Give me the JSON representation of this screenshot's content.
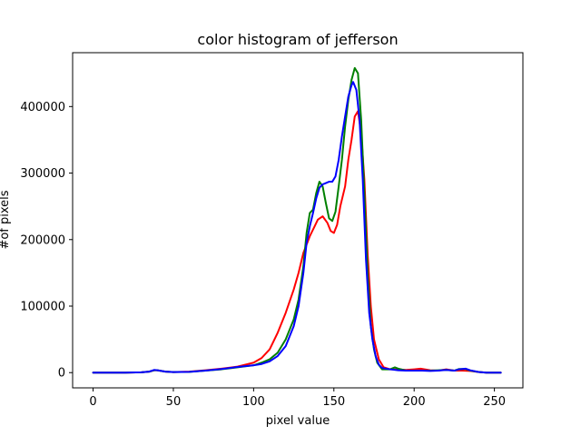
{
  "chart_data": {
    "type": "line",
    "title": "color histogram of jefferson",
    "xlabel": "pixel value",
    "ylabel": "#of pixels",
    "xlim": [
      -12.75,
      267.75
    ],
    "ylim": [
      -22900,
      481000
    ],
    "grid": false,
    "legend": "none",
    "xticks": [
      0,
      50,
      100,
      150,
      200,
      250
    ],
    "xtick_labels": [
      "0",
      "50",
      "100",
      "150",
      "200",
      "250"
    ],
    "yticks": [
      0,
      100000,
      200000,
      300000,
      400000
    ],
    "ytick_labels": [
      "0",
      "100000",
      "200000",
      "300000",
      "400000"
    ],
    "series": [
      {
        "color": "#ff0000",
        "points": [
          [
            0,
            0
          ],
          [
            10,
            0
          ],
          [
            20,
            0
          ],
          [
            30,
            500
          ],
          [
            35,
            1500
          ],
          [
            38,
            3500
          ],
          [
            40,
            3500
          ],
          [
            45,
            1500
          ],
          [
            50,
            800
          ],
          [
            60,
            1500
          ],
          [
            70,
            3500
          ],
          [
            80,
            6000
          ],
          [
            90,
            9000
          ],
          [
            100,
            15000
          ],
          [
            105,
            22000
          ],
          [
            110,
            35000
          ],
          [
            115,
            60000
          ],
          [
            120,
            90000
          ],
          [
            125,
            125000
          ],
          [
            128,
            150000
          ],
          [
            131,
            180000
          ],
          [
            135,
            205000
          ],
          [
            138,
            220000
          ],
          [
            140,
            230000
          ],
          [
            143,
            235000
          ],
          [
            146,
            225000
          ],
          [
            148,
            213000
          ],
          [
            150,
            210000
          ],
          [
            152,
            222000
          ],
          [
            154,
            250000
          ],
          [
            157,
            280000
          ],
          [
            159,
            320000
          ],
          [
            161,
            350000
          ],
          [
            163,
            385000
          ],
          [
            165,
            393000
          ],
          [
            167,
            360000
          ],
          [
            169,
            290000
          ],
          [
            171,
            180000
          ],
          [
            173,
            100000
          ],
          [
            175,
            50000
          ],
          [
            178,
            20000
          ],
          [
            181,
            8000
          ],
          [
            185,
            5000
          ],
          [
            190,
            5000
          ],
          [
            195,
            4000
          ],
          [
            200,
            5000
          ],
          [
            204,
            6000
          ],
          [
            210,
            3500
          ],
          [
            215,
            3000
          ],
          [
            220,
            5000
          ],
          [
            225,
            3000
          ],
          [
            230,
            3000
          ],
          [
            235,
            2500
          ],
          [
            240,
            1000
          ],
          [
            245,
            0
          ],
          [
            254,
            0
          ]
        ]
      },
      {
        "color": "#008000",
        "points": [
          [
            0,
            0
          ],
          [
            10,
            0
          ],
          [
            20,
            0
          ],
          [
            30,
            500
          ],
          [
            35,
            1500
          ],
          [
            38,
            3500
          ],
          [
            40,
            3500
          ],
          [
            45,
            1500
          ],
          [
            50,
            800
          ],
          [
            60,
            1200
          ],
          [
            70,
            3000
          ],
          [
            80,
            5000
          ],
          [
            90,
            8000
          ],
          [
            100,
            11000
          ],
          [
            105,
            15000
          ],
          [
            110,
            20000
          ],
          [
            115,
            30000
          ],
          [
            120,
            50000
          ],
          [
            125,
            80000
          ],
          [
            128,
            110000
          ],
          [
            131,
            160000
          ],
          [
            133,
            210000
          ],
          [
            135,
            240000
          ],
          [
            137,
            245000
          ],
          [
            139,
            270000
          ],
          [
            141,
            287000
          ],
          [
            143,
            280000
          ],
          [
            145,
            255000
          ],
          [
            147,
            232000
          ],
          [
            149,
            228000
          ],
          [
            151,
            242000
          ],
          [
            153,
            280000
          ],
          [
            155,
            320000
          ],
          [
            157,
            370000
          ],
          [
            159,
            410000
          ],
          [
            161,
            440000
          ],
          [
            163,
            458000
          ],
          [
            165,
            450000
          ],
          [
            167,
            380000
          ],
          [
            169,
            270000
          ],
          [
            171,
            150000
          ],
          [
            173,
            70000
          ],
          [
            175,
            35000
          ],
          [
            177,
            15000
          ],
          [
            180,
            5000
          ],
          [
            185,
            5000
          ],
          [
            188,
            8000
          ],
          [
            190,
            6000
          ],
          [
            195,
            3000
          ],
          [
            200,
            3000
          ],
          [
            205,
            3000
          ],
          [
            210,
            3000
          ],
          [
            215,
            3500
          ],
          [
            220,
            4000
          ],
          [
            225,
            3000
          ],
          [
            228,
            5500
          ],
          [
            232,
            5500
          ],
          [
            235,
            3000
          ],
          [
            240,
            1000
          ],
          [
            245,
            0
          ],
          [
            254,
            0
          ]
        ]
      },
      {
        "color": "#0000ff",
        "points": [
          [
            0,
            0
          ],
          [
            10,
            0
          ],
          [
            20,
            0
          ],
          [
            30,
            500
          ],
          [
            35,
            1500
          ],
          [
            38,
            4000
          ],
          [
            40,
            3500
          ],
          [
            45,
            1500
          ],
          [
            50,
            800
          ],
          [
            60,
            1200
          ],
          [
            70,
            3000
          ],
          [
            80,
            5500
          ],
          [
            90,
            8500
          ],
          [
            100,
            11000
          ],
          [
            105,
            13000
          ],
          [
            110,
            17000
          ],
          [
            115,
            25000
          ],
          [
            120,
            40000
          ],
          [
            125,
            70000
          ],
          [
            128,
            100000
          ],
          [
            131,
            150000
          ],
          [
            133,
            195000
          ],
          [
            135,
            220000
          ],
          [
            137,
            240000
          ],
          [
            139,
            262000
          ],
          [
            141,
            278000
          ],
          [
            143,
            283000
          ],
          [
            145,
            285000
          ],
          [
            147,
            287000
          ],
          [
            149,
            287000
          ],
          [
            151,
            295000
          ],
          [
            153,
            320000
          ],
          [
            155,
            355000
          ],
          [
            157,
            385000
          ],
          [
            159,
            415000
          ],
          [
            161,
            432000
          ],
          [
            162,
            437000
          ],
          [
            164,
            425000
          ],
          [
            166,
            380000
          ],
          [
            168,
            290000
          ],
          [
            170,
            170000
          ],
          [
            172,
            90000
          ],
          [
            174,
            50000
          ],
          [
            176,
            25000
          ],
          [
            178,
            12000
          ],
          [
            180,
            7000
          ],
          [
            185,
            5000
          ],
          [
            190,
            3500
          ],
          [
            195,
            3000
          ],
          [
            200,
            3000
          ],
          [
            205,
            3000
          ],
          [
            210,
            2500
          ],
          [
            215,
            3000
          ],
          [
            220,
            4000
          ],
          [
            225,
            3000
          ],
          [
            228,
            5000
          ],
          [
            232,
            6000
          ],
          [
            235,
            3500
          ],
          [
            240,
            1000
          ],
          [
            245,
            0
          ],
          [
            254,
            0
          ]
        ]
      }
    ]
  }
}
